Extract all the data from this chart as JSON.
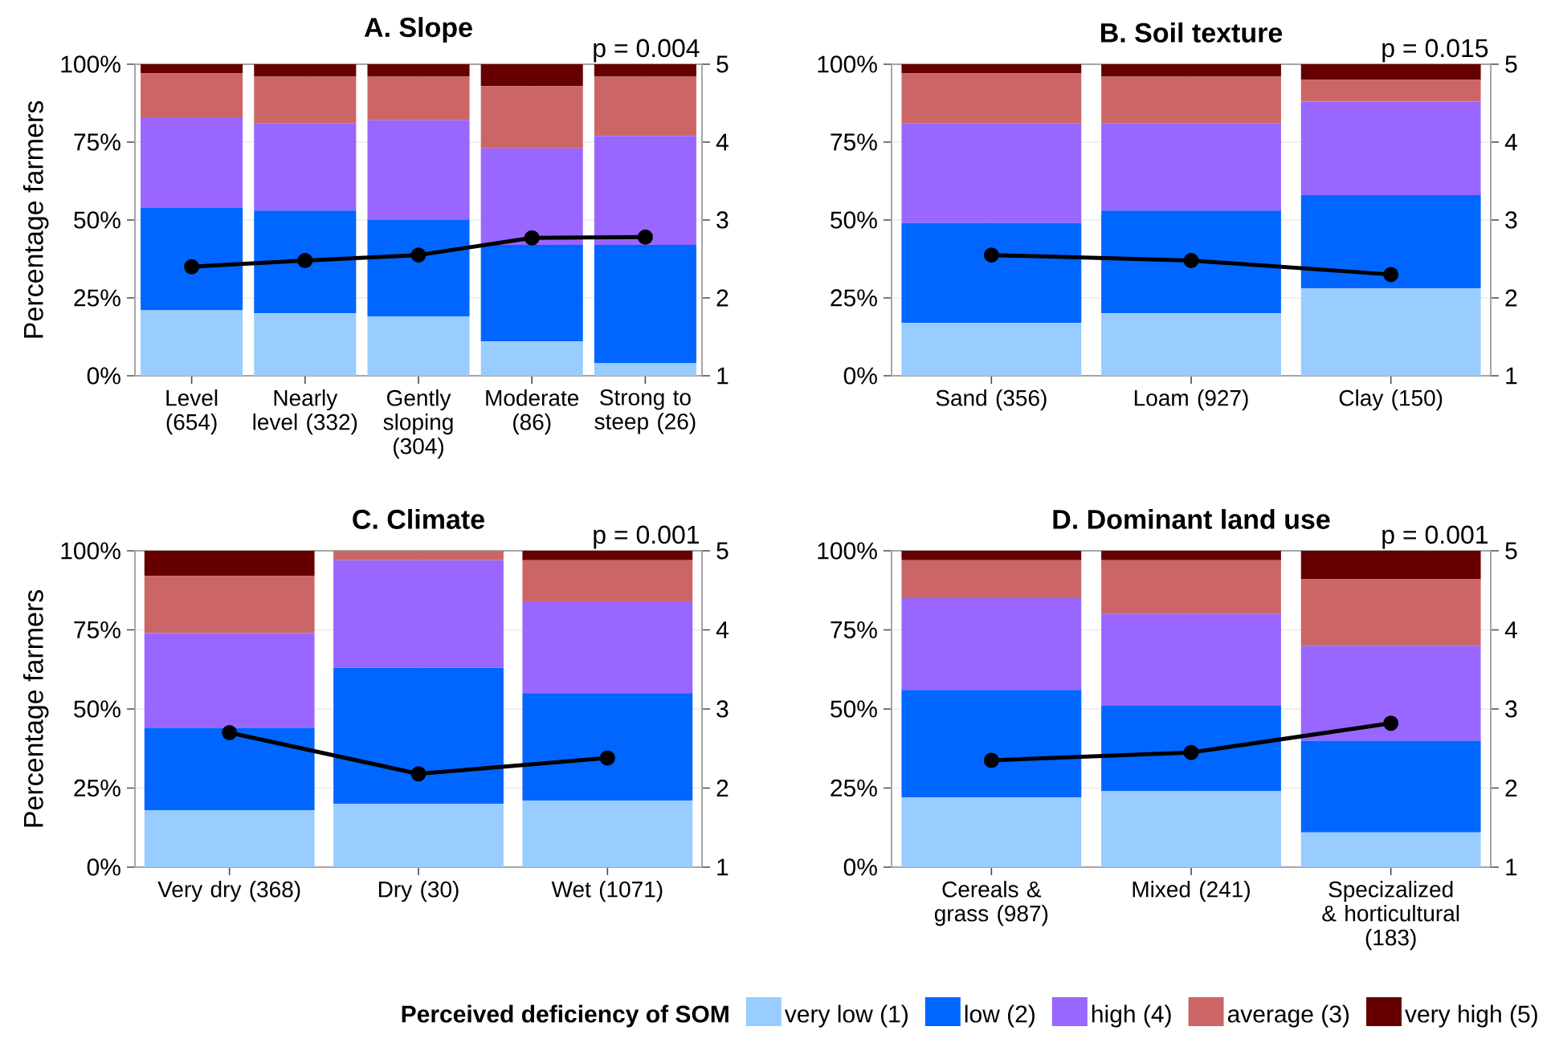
{
  "chart_data": [
    {
      "type": "bar",
      "stacked": true,
      "title": "A. Slope",
      "ylabel": "Percentage farmers",
      "annotations": [
        "p = 0.004"
      ],
      "grid": true,
      "categories": [
        "Level (654)",
        "Nearly level (332)",
        "Gently sloping (304)",
        "Moderate (86)",
        "Strong to steep (26)"
      ],
      "ylim": [
        0,
        100
      ],
      "yticks": [
        {
          "value": 0,
          "label": "0%"
        },
        {
          "value": 25,
          "label": "25%"
        },
        {
          "value": 50,
          "label": "50%"
        },
        {
          "value": 75,
          "label": "75%"
        },
        {
          "value": 100,
          "label": "100%"
        }
      ],
      "y2lim": [
        1,
        5
      ],
      "y2ticks": [
        1,
        2,
        3,
        4,
        5
      ],
      "series": [
        {
          "color": "#99ccff",
          "values": [
            21,
            20,
            19,
            11,
            4
          ]
        },
        {
          "color": "#0066ff",
          "values": [
            33,
            33,
            31,
            31,
            38
          ]
        },
        {
          "color": "#9966ff",
          "values": [
            29,
            28,
            32,
            31,
            35
          ]
        },
        {
          "color": "#cc6666",
          "values": [
            14,
            15,
            14,
            20,
            19
          ]
        },
        {
          "color": "#660000",
          "values": [
            3,
            4,
            4,
            7,
            4
          ]
        },
        {
          "type": "line",
          "axis": "y2",
          "marker": "circle",
          "color": "#000000",
          "values": [
            2.4,
            2.48,
            2.55,
            2.77,
            2.78
          ]
        }
      ]
    },
    {
      "type": "bar",
      "stacked": true,
      "title": "B. Soil texture",
      "annotations": [
        "p = 0.015"
      ],
      "grid": true,
      "categories": [
        "Sand (356)",
        "Loam (927)",
        "Clay (150)"
      ],
      "ylim": [
        0,
        100
      ],
      "yticks": [
        {
          "value": 0,
          "label": "0%"
        },
        {
          "value": 25,
          "label": "25%"
        },
        {
          "value": 50,
          "label": "50%"
        },
        {
          "value": 75,
          "label": "75%"
        },
        {
          "value": 100,
          "label": "100%"
        }
      ],
      "y2lim": [
        1,
        5
      ],
      "y2ticks": [
        1,
        2,
        3,
        4,
        5
      ],
      "series": [
        {
          "color": "#99ccff",
          "values": [
            17,
            20,
            28
          ]
        },
        {
          "color": "#0066ff",
          "values": [
            32,
            33,
            30
          ]
        },
        {
          "color": "#9966ff",
          "values": [
            32,
            28,
            30
          ]
        },
        {
          "color": "#cc6666",
          "values": [
            16,
            15,
            7
          ]
        },
        {
          "color": "#660000",
          "values": [
            3,
            4,
            5
          ]
        },
        {
          "type": "line",
          "axis": "y2",
          "marker": "circle",
          "color": "#000000",
          "values": [
            2.55,
            2.48,
            2.3
          ]
        }
      ]
    },
    {
      "type": "bar",
      "stacked": true,
      "title": "C. Climate",
      "ylabel": "Percentage farmers",
      "annotations": [
        "p = 0.001"
      ],
      "grid": true,
      "categories": [
        "Very dry (368)",
        "Dry (30)",
        "Wet (1071)"
      ],
      "ylim": [
        0,
        100
      ],
      "yticks": [
        {
          "value": 0,
          "label": "0%"
        },
        {
          "value": 25,
          "label": "25%"
        },
        {
          "value": 50,
          "label": "50%"
        },
        {
          "value": 75,
          "label": "75%"
        },
        {
          "value": 100,
          "label": "100%"
        }
      ],
      "y2lim": [
        1,
        5
      ],
      "y2ticks": [
        1,
        2,
        3,
        4,
        5
      ],
      "series": [
        {
          "color": "#99ccff",
          "values": [
            18,
            20,
            21
          ]
        },
        {
          "color": "#0066ff",
          "values": [
            26,
            43,
            34
          ]
        },
        {
          "color": "#9966ff",
          "values": [
            30,
            34,
            29
          ]
        },
        {
          "color": "#cc6666",
          "values": [
            18,
            3,
            13
          ]
        },
        {
          "color": "#660000",
          "values": [
            8,
            0,
            3
          ]
        },
        {
          "type": "line",
          "axis": "y2",
          "marker": "circle",
          "color": "#000000",
          "values": [
            2.7,
            2.18,
            2.38
          ]
        }
      ]
    },
    {
      "type": "bar",
      "stacked": true,
      "title": "D. Dominant land use",
      "annotations": [
        "p = 0.001"
      ],
      "grid": true,
      "legend": "bottom",
      "legend_title": "Perceived deficiency of SOM",
      "categories": [
        "Cereals & grass (987)",
        "Mixed (241)",
        "Specizalized & horticultural (183)"
      ],
      "ylim": [
        0,
        100
      ],
      "yticks": [
        {
          "value": 0,
          "label": "0%"
        },
        {
          "value": 25,
          "label": "25%"
        },
        {
          "value": 50,
          "label": "50%"
        },
        {
          "value": 75,
          "label": "75%"
        },
        {
          "value": 100,
          "label": "100%"
        }
      ],
      "y2lim": [
        1,
        5
      ],
      "y2ticks": [
        1,
        2,
        3,
        4,
        5
      ],
      "series": [
        {
          "name": "very low (1)",
          "color": "#99ccff",
          "values": [
            22,
            24,
            11
          ]
        },
        {
          "name": "low (2)",
          "color": "#0066ff",
          "values": [
            34,
            27,
            29
          ]
        },
        {
          "name": "high (4)",
          "color": "#9966ff",
          "values": [
            29,
            29,
            30
          ]
        },
        {
          "name": "average (3)",
          "color": "#cc6666",
          "values": [
            12,
            17,
            21
          ]
        },
        {
          "name": "very high (5)",
          "color": "#660000",
          "values": [
            3,
            3,
            9
          ]
        },
        {
          "type": "line",
          "axis": "y2",
          "marker": "circle",
          "color": "#000000",
          "values": [
            2.35,
            2.45,
            2.82
          ]
        }
      ]
    }
  ]
}
